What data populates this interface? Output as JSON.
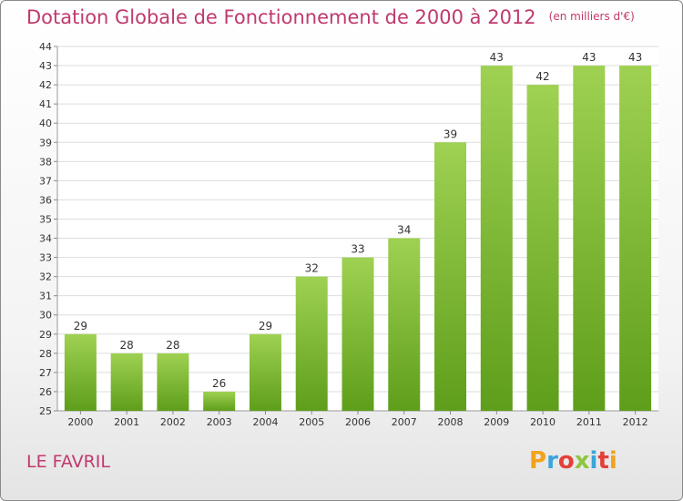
{
  "header": {
    "title": "Dotation Globale de Fonctionnement de 2000 à 2012",
    "unit": "(en milliers d'€)"
  },
  "footer": {
    "commune": "LE FAVRIL",
    "logo_text": "Proxiti",
    "logo_colors": [
      "#f2a31b",
      "#3ba5d9",
      "#e3403a",
      "#8dc63f",
      "#3ba5d9",
      "#e3403a",
      "#f2a31b"
    ]
  },
  "colors": {
    "title": "#c0396e",
    "bar_light": "#9fd152",
    "bar_dark": "#5e9e1a"
  },
  "chart_data": {
    "type": "bar",
    "title": "Dotation Globale de Fonctionnement de 2000 à 2012",
    "subtitle": "(en milliers d'€)",
    "xlabel": "",
    "ylabel": "",
    "categories": [
      "2000",
      "2001",
      "2002",
      "2003",
      "2004",
      "2005",
      "2006",
      "2007",
      "2008",
      "2009",
      "2010",
      "2011",
      "2012"
    ],
    "values": [
      29,
      28,
      28,
      26,
      29,
      32,
      33,
      34,
      39,
      43,
      42,
      43,
      43
    ],
    "ylim": [
      25,
      44
    ],
    "yticks": [
      25,
      26,
      27,
      28,
      29,
      30,
      31,
      32,
      33,
      34,
      35,
      36,
      37,
      38,
      39,
      40,
      41,
      42,
      43,
      44
    ],
    "grid": true,
    "data_labels": true
  }
}
